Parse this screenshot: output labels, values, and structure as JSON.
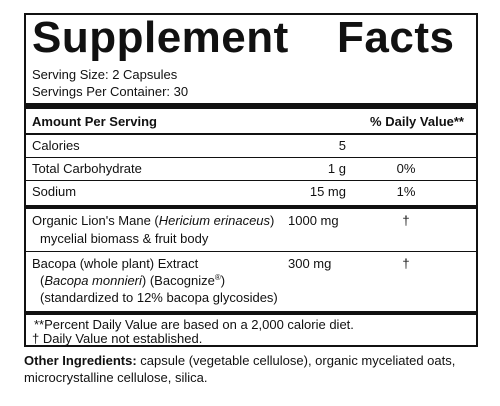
{
  "panel": {
    "title_word1": "Supplement",
    "title_word2": "Facts",
    "serving_size": "Serving Size: 2 Capsules",
    "servings_per_container": "Servings Per Container: 30",
    "header_amount": "Amount Per Serving",
    "header_dv": "% Daily Value**",
    "rows": [
      {
        "name": "Calories",
        "amount": "5",
        "dv": ""
      },
      {
        "name": "Total Carbohydrate",
        "amount": "1 g",
        "dv": "0%"
      },
      {
        "name": "Sodium",
        "amount": "15 mg",
        "dv": "1%"
      }
    ],
    "lions_mane": {
      "name_pre": "Organic Lion's Mane (",
      "name_italic": "Hericium erinaceus",
      "name_post": ")",
      "line2": "mycelial biomass & fruit body",
      "amount": "1000 mg",
      "dv": "†"
    },
    "bacopa": {
      "line1": "Bacopa (whole plant) Extract",
      "line2_pre": "(",
      "line2_italic": "Bacopa monnieri",
      "line2_mid": ") (Bacognize",
      "line2_sup": "®",
      "line2_post": ")",
      "line3": "(standardized to 12% bacopa glycosides)",
      "amount": "300 mg",
      "dv": "†"
    },
    "footnote1": "**Percent Daily Value are based on a 2,000 calorie diet.",
    "footnote2": "† Daily Value not established."
  },
  "other_ingredients": {
    "label": "Other Ingredients:",
    "text": " capsule (vegetable cellulose), organic myceliated oats,",
    "line2": "microcrystalline cellulose, silica."
  }
}
